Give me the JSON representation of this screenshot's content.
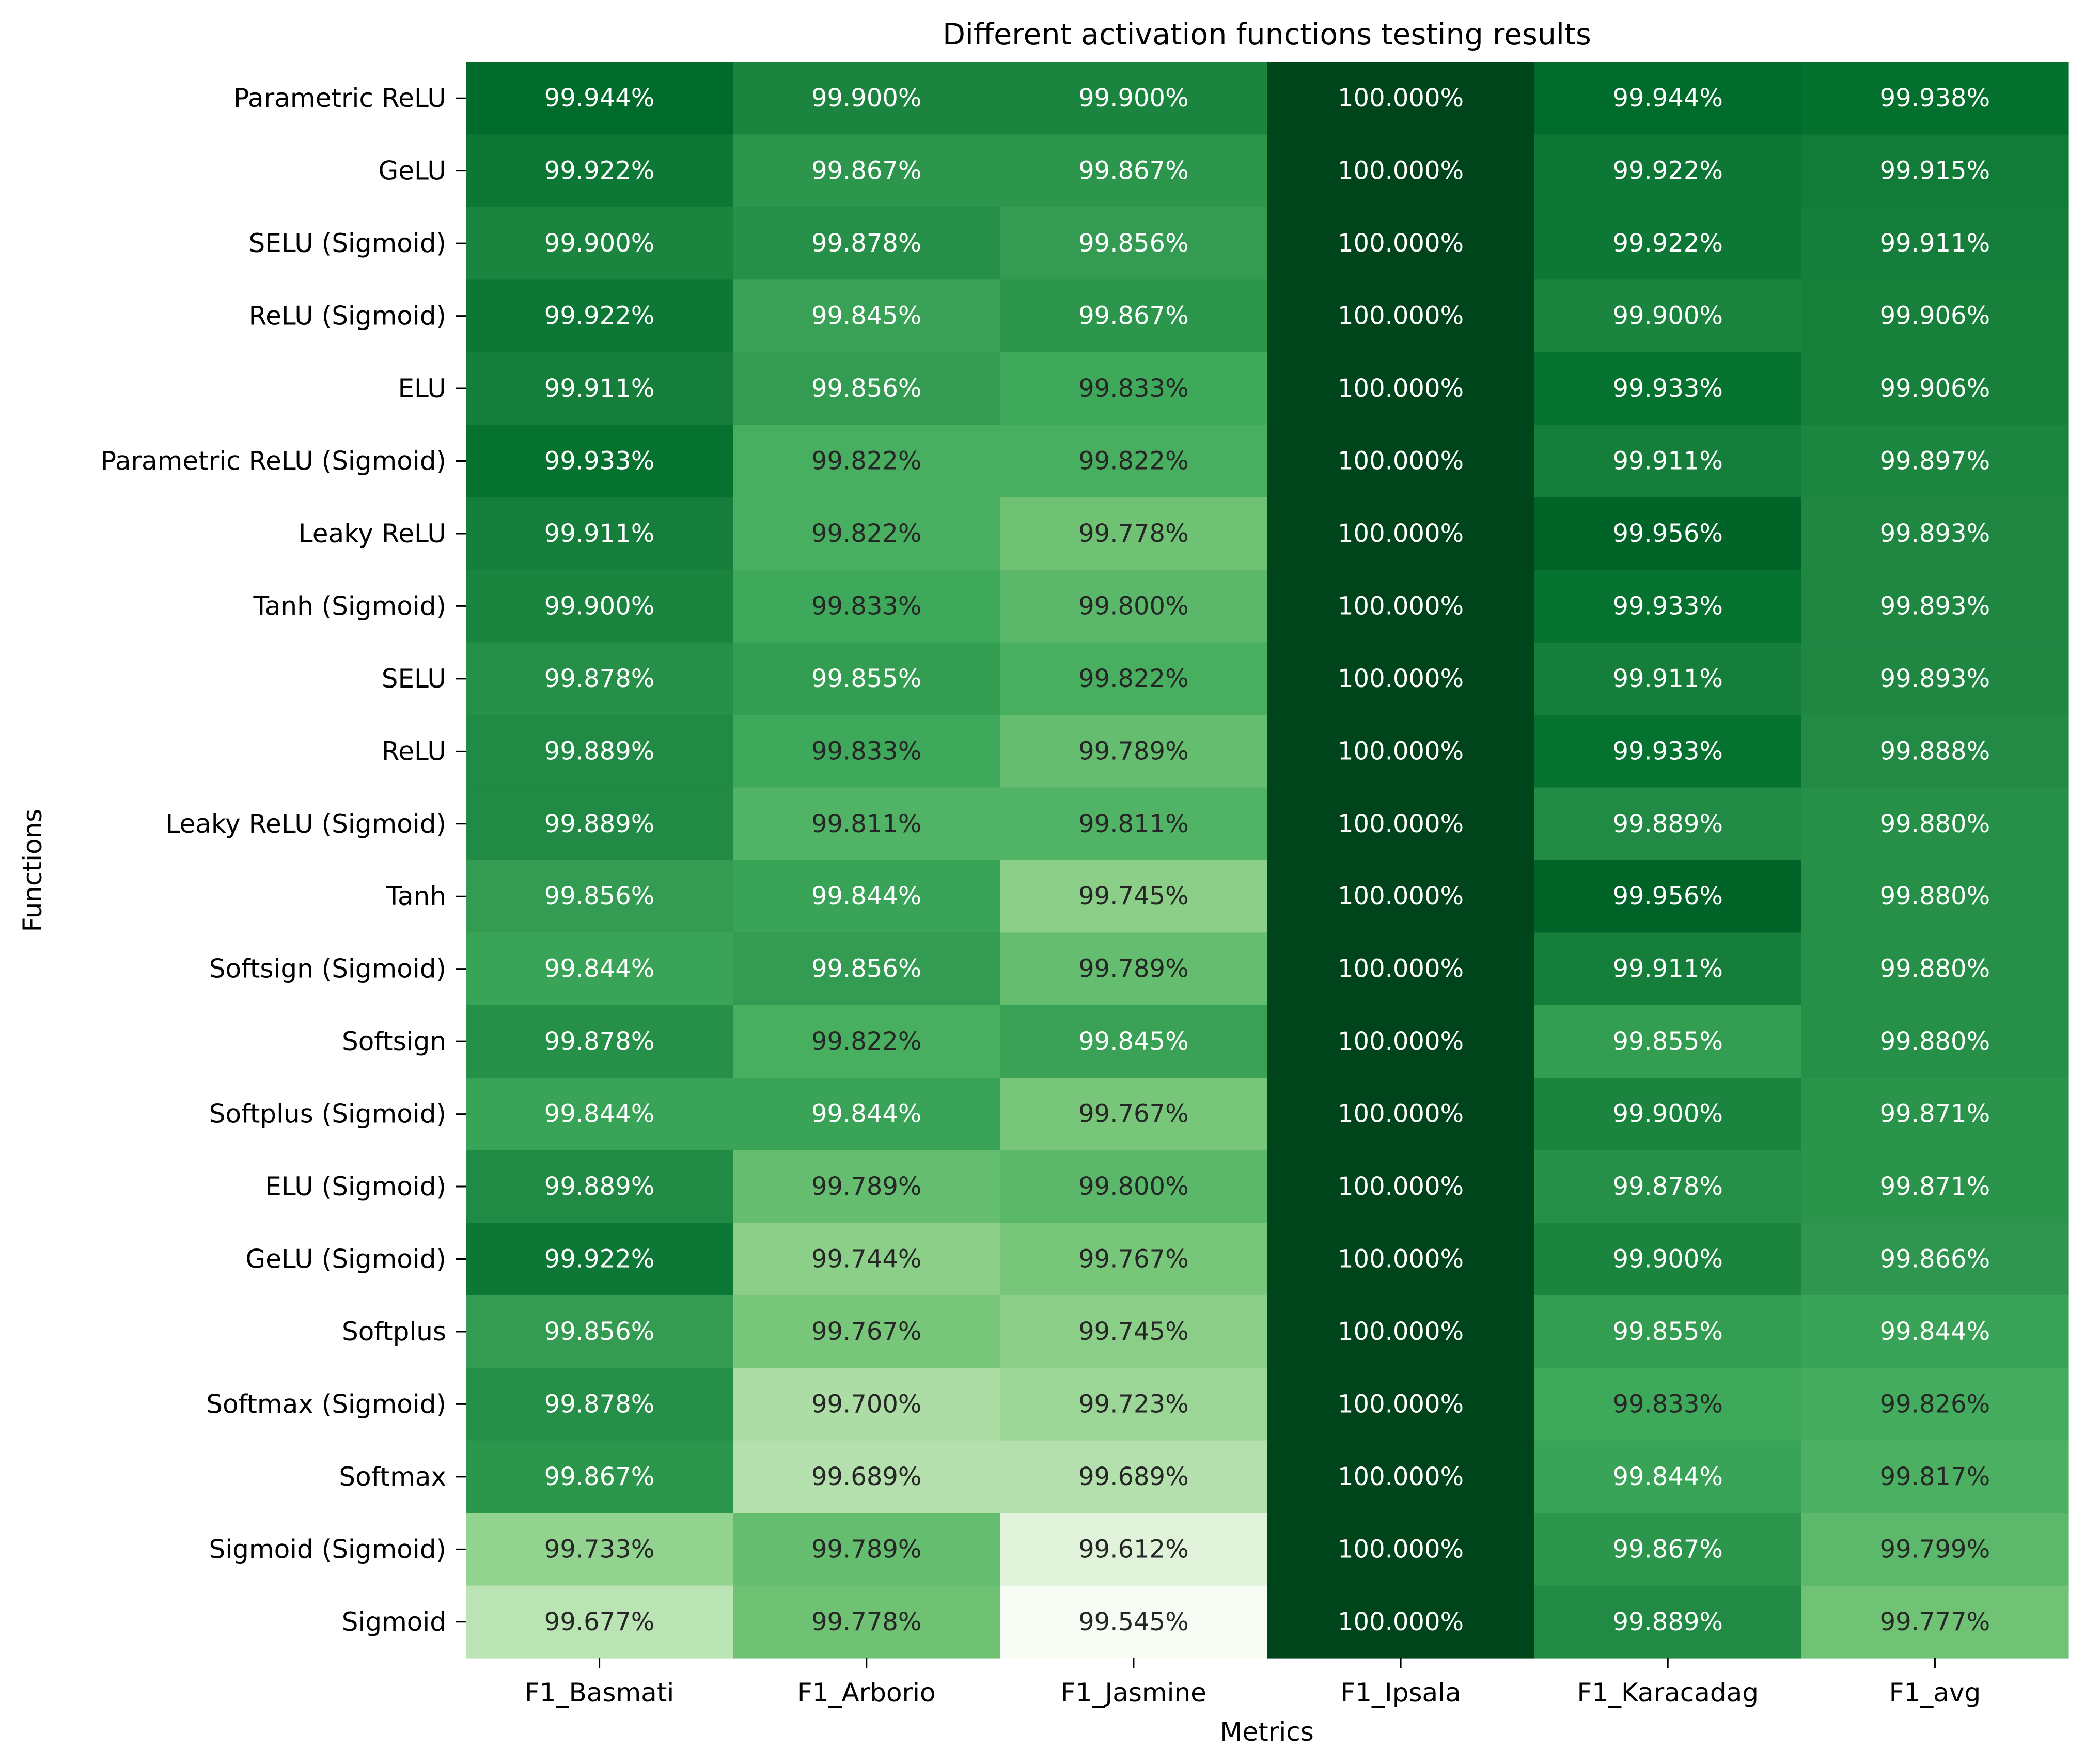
{
  "chart_data": {
    "type": "heatmap",
    "title": "Different activation functions testing results",
    "xlabel": "Metrics",
    "ylabel": "Functions",
    "columns": [
      "F1_Basmati",
      "F1_Arborio",
      "F1_Jasmine",
      "F1_Ipsala",
      "F1_Karacadag",
      "F1_avg"
    ],
    "rows": [
      "Parametric ReLU",
      "GeLU",
      "SELU (Sigmoid)",
      "ReLU (Sigmoid)",
      "ELU",
      "Parametric ReLU (Sigmoid)",
      "Leaky ReLU",
      "Tanh (Sigmoid)",
      "SELU",
      "ReLU",
      "Leaky ReLU (Sigmoid)",
      "Tanh",
      "Softsign (Sigmoid)",
      "Softsign",
      "Softplus (Sigmoid)",
      "ELU (Sigmoid)",
      "GeLU (Sigmoid)",
      "Softplus",
      "Softmax (Sigmoid)",
      "Softmax",
      "Sigmoid (Sigmoid)",
      "Sigmoid"
    ],
    "values": [
      [
        99.944,
        99.9,
        99.9,
        100.0,
        99.944,
        99.938
      ],
      [
        99.922,
        99.867,
        99.867,
        100.0,
        99.922,
        99.915
      ],
      [
        99.9,
        99.878,
        99.856,
        100.0,
        99.922,
        99.911
      ],
      [
        99.922,
        99.845,
        99.867,
        100.0,
        99.9,
        99.906
      ],
      [
        99.911,
        99.856,
        99.833,
        100.0,
        99.933,
        99.906
      ],
      [
        99.933,
        99.822,
        99.822,
        100.0,
        99.911,
        99.897
      ],
      [
        99.911,
        99.822,
        99.778,
        100.0,
        99.956,
        99.893
      ],
      [
        99.9,
        99.833,
        99.8,
        100.0,
        99.933,
        99.893
      ],
      [
        99.878,
        99.855,
        99.822,
        100.0,
        99.911,
        99.893
      ],
      [
        99.889,
        99.833,
        99.789,
        100.0,
        99.933,
        99.888
      ],
      [
        99.889,
        99.811,
        99.811,
        100.0,
        99.889,
        99.88
      ],
      [
        99.856,
        99.844,
        99.745,
        100.0,
        99.956,
        99.88
      ],
      [
        99.844,
        99.856,
        99.789,
        100.0,
        99.911,
        99.88
      ],
      [
        99.878,
        99.822,
        99.845,
        100.0,
        99.855,
        99.88
      ],
      [
        99.844,
        99.844,
        99.767,
        100.0,
        99.9,
        99.871
      ],
      [
        99.889,
        99.789,
        99.8,
        100.0,
        99.878,
        99.871
      ],
      [
        99.922,
        99.744,
        99.767,
        100.0,
        99.9,
        99.866
      ],
      [
        99.856,
        99.767,
        99.745,
        100.0,
        99.855,
        99.844
      ],
      [
        99.878,
        99.7,
        99.723,
        100.0,
        99.833,
        99.826
      ],
      [
        99.867,
        99.689,
        99.689,
        100.0,
        99.844,
        99.817
      ],
      [
        99.733,
        99.789,
        99.612,
        100.0,
        99.867,
        99.799
      ],
      [
        99.677,
        99.778,
        99.545,
        100.0,
        99.889,
        99.777
      ]
    ],
    "value_format": "percent-3dp",
    "colormap": "Greens",
    "vmin": 99.545,
    "vmax": 100.0,
    "colorbar": false,
    "grid": false
  }
}
